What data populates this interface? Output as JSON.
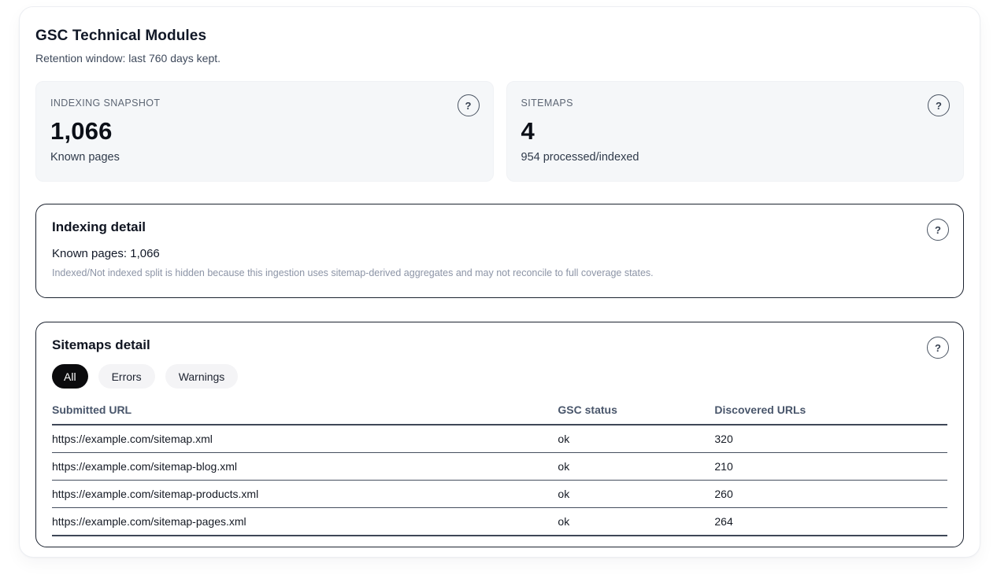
{
  "page": {
    "title": "GSC Technical Modules",
    "subtitle": "Retention window: last 760 days kept."
  },
  "icons": {
    "help": "?"
  },
  "stats": [
    {
      "label": "INDEXING SNAPSHOT",
      "value": "1,066",
      "sub": "Known pages"
    },
    {
      "label": "SITEMAPS",
      "value": "4",
      "sub": "954 processed/indexed"
    }
  ],
  "indexing_detail": {
    "title": "Indexing detail",
    "known_pages_line": "Known pages: 1,066",
    "note": "Indexed/Not indexed split is hidden because this ingestion uses sitemap-derived aggregates and may not reconcile to full coverage states."
  },
  "sitemaps_detail": {
    "title": "Sitemaps detail",
    "filters": [
      {
        "label": "All",
        "active": true
      },
      {
        "label": "Errors",
        "active": false
      },
      {
        "label": "Warnings",
        "active": false
      }
    ],
    "table": {
      "columns": [
        "Submitted URL",
        "GSC status",
        "Discovered URLs"
      ],
      "rows": [
        {
          "url": "https://example.com/sitemap.xml",
          "status": "ok",
          "discovered": "320"
        },
        {
          "url": "https://example.com/sitemap-blog.xml",
          "status": "ok",
          "discovered": "210"
        },
        {
          "url": "https://example.com/sitemap-products.xml",
          "status": "ok",
          "discovered": "260"
        },
        {
          "url": "https://example.com/sitemap-pages.xml",
          "status": "ok",
          "discovered": "264"
        }
      ]
    }
  },
  "colors": {
    "stat_card_bg": "#f5f7f9",
    "detail_border": "#1c2330",
    "chip_active_bg": "#0b0b0d",
    "chip_inactive_bg": "#f4f4f6",
    "table_rule": "#454e5e",
    "note_text": "#8c94a6"
  }
}
